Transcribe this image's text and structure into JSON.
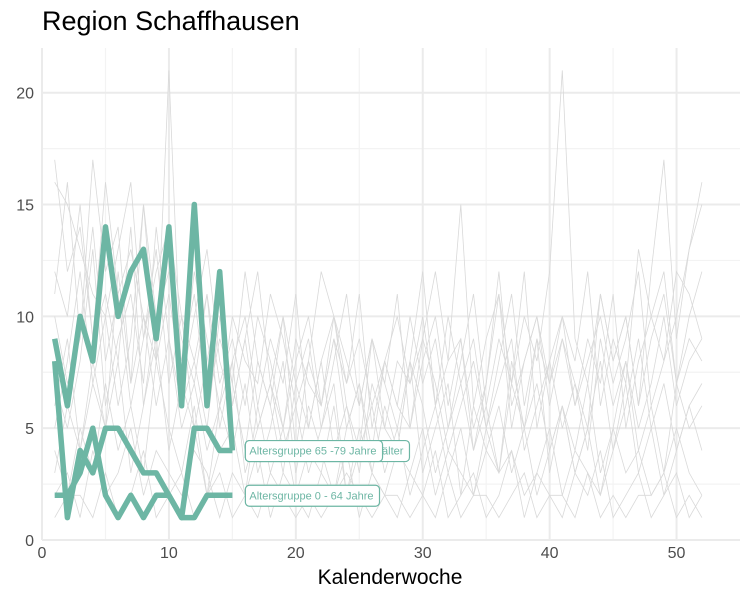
{
  "chart_data": {
    "type": "line",
    "title": "Region Schaffhausen",
    "xlabel": "Kalenderwoche",
    "ylabel": "",
    "xlim": [
      0,
      55
    ],
    "ylim": [
      0,
      22
    ],
    "x_ticks": [
      0,
      10,
      20,
      30,
      40,
      50
    ],
    "y_ticks": [
      0,
      5,
      10,
      15,
      20
    ],
    "grid": true,
    "highlight_color": "#6db6a4",
    "background_color": "#d9d9d9",
    "highlight_series": [
      {
        "name": "Altersgruppe 80 Jahre und älter",
        "label_text": "Altersgruppe 80 Jahre und älter",
        "x": [
          1,
          2,
          3,
          4,
          5,
          6,
          7,
          8,
          9,
          10,
          11,
          12,
          13,
          14,
          15
        ],
        "values": [
          9,
          6,
          10,
          8,
          14,
          10,
          12,
          13,
          9,
          14,
          6,
          15,
          6,
          12,
          4
        ]
      },
      {
        "name": "Altersgruppe 65 -79 Jahre",
        "label_text": "Altersgruppe 65 -79 Jahre",
        "x": [
          1,
          2,
          3,
          4,
          5,
          6,
          7,
          8,
          9,
          10,
          11,
          12,
          13,
          14,
          15
        ],
        "values": [
          8,
          1,
          4,
          3,
          5,
          5,
          4,
          3,
          3,
          2,
          1,
          5,
          5,
          4,
          4
        ]
      },
      {
        "name": "Altersgruppe 0 - 64 Jahre",
        "label_text": "Altersgruppe 0 - 64 Jahre",
        "x": [
          1,
          2,
          3,
          4,
          5,
          6,
          7,
          8,
          9,
          10,
          11,
          12,
          13,
          14,
          15
        ],
        "values": [
          2,
          2,
          3,
          5,
          2,
          1,
          2,
          1,
          2,
          2,
          1,
          1,
          2,
          2,
          2
        ]
      }
    ],
    "background_series": [
      {
        "x": [
          1,
          2,
          3,
          4,
          5,
          6,
          7,
          8,
          9,
          10,
          11,
          12,
          13,
          14,
          15,
          16,
          17,
          18,
          19,
          20,
          21,
          22,
          23,
          24,
          25,
          26,
          27,
          28,
          29,
          30,
          31,
          32,
          33,
          34,
          35,
          36,
          37,
          38,
          39,
          40,
          41,
          42,
          43,
          44,
          45,
          46,
          47,
          48,
          49,
          50,
          51,
          52
        ],
        "values": [
          17,
          12,
          14,
          9,
          16,
          11,
          13,
          10,
          8,
          21,
          7,
          12,
          9,
          6,
          10,
          8,
          7,
          11,
          9,
          6,
          8,
          12,
          10,
          7,
          9,
          6,
          8,
          10,
          7,
          9,
          12,
          8,
          15,
          6,
          9,
          11,
          7,
          10,
          8,
          12,
          21,
          9,
          7,
          11,
          8,
          10,
          6,
          12,
          17,
          9,
          13,
          16
        ]
      },
      {
        "x": [
          1,
          2,
          3,
          4,
          5,
          6,
          7,
          8,
          9,
          10,
          11,
          12,
          13,
          14,
          15,
          16,
          17,
          18,
          19,
          20,
          21,
          22,
          23,
          24,
          25,
          26,
          27,
          28,
          29,
          30,
          31,
          32,
          33,
          34,
          35,
          36,
          37,
          38,
          39,
          40,
          41,
          42,
          43,
          44,
          45,
          46,
          47,
          48,
          49,
          50,
          51,
          52
        ],
        "values": [
          11,
          16,
          9,
          17,
          12,
          14,
          7,
          15,
          10,
          13,
          8,
          11,
          6,
          9,
          7,
          12,
          8,
          6,
          10,
          7,
          9,
          5,
          8,
          11,
          6,
          9,
          7,
          5,
          8,
          12,
          6,
          10,
          7,
          9,
          5,
          8,
          11,
          6,
          9,
          7,
          10,
          8,
          12,
          6,
          9,
          7,
          13,
          10,
          8,
          12,
          11,
          9
        ]
      },
      {
        "x": [
          1,
          2,
          3,
          4,
          5,
          6,
          7,
          8,
          9,
          10,
          11,
          12,
          13,
          14,
          15,
          16,
          17,
          18,
          19,
          20,
          21,
          22,
          23,
          24,
          25,
          26,
          27,
          28,
          29,
          30,
          31,
          32,
          33,
          34,
          35,
          36,
          37,
          38,
          39,
          40,
          41,
          42,
          43,
          44,
          45,
          46,
          47,
          48,
          49,
          50,
          51,
          52
        ],
        "values": [
          16,
          15,
          13,
          11,
          10,
          13,
          16,
          9,
          12,
          14,
          10,
          8,
          11,
          7,
          9,
          6,
          10,
          8,
          5,
          9,
          7,
          6,
          10,
          8,
          6,
          9,
          5,
          8,
          7,
          10,
          6,
          8,
          9,
          5,
          7,
          12,
          6,
          8,
          10,
          7,
          9,
          6,
          8,
          10,
          7,
          9,
          12,
          6,
          8,
          10,
          13,
          15
        ]
      },
      {
        "x": [
          1,
          2,
          3,
          4,
          5,
          6,
          7,
          8,
          9,
          10,
          11,
          12,
          13,
          14,
          15,
          16,
          17,
          18,
          19,
          20,
          21,
          22,
          23,
          24,
          25,
          26,
          27,
          28,
          29,
          30,
          31,
          32,
          33,
          34,
          35,
          36,
          37,
          38,
          39,
          40,
          41,
          42,
          43,
          44,
          45,
          46,
          47,
          48,
          49,
          50,
          51,
          52
        ],
        "values": [
          5,
          8,
          12,
          7,
          10,
          6,
          9,
          15,
          8,
          11,
          7,
          10,
          13,
          8,
          6,
          9,
          5,
          7,
          10,
          4,
          8,
          6,
          9,
          5,
          7,
          4,
          8,
          6,
          5,
          9,
          7,
          4,
          6,
          8,
          5,
          7,
          9,
          4,
          6,
          8,
          5,
          7,
          4,
          9,
          6,
          8,
          5,
          7,
          10,
          6,
          8,
          9
        ]
      },
      {
        "x": [
          1,
          2,
          3,
          4,
          5,
          6,
          7,
          8,
          9,
          10,
          11,
          12,
          13,
          14,
          15,
          16,
          17,
          18,
          19,
          20,
          21,
          22,
          23,
          24,
          25,
          26,
          27,
          28,
          29,
          30,
          31,
          32,
          33,
          34,
          35,
          36,
          37,
          38,
          39,
          40,
          41,
          42,
          43,
          44,
          45,
          46,
          47,
          48,
          49,
          50,
          51,
          52
        ],
        "values": [
          7,
          5,
          8,
          13,
          6,
          9,
          11,
          7,
          14,
          9,
          6,
          8,
          5,
          10,
          7,
          4,
          8,
          6,
          3,
          7,
          5,
          8,
          4,
          6,
          3,
          7,
          5,
          4,
          8,
          6,
          3,
          5,
          7,
          4,
          6,
          3,
          8,
          5,
          7,
          4,
          6,
          3,
          5,
          8,
          4,
          6,
          9,
          5,
          7,
          4,
          6,
          7
        ]
      },
      {
        "x": [
          1,
          2,
          3,
          4,
          5,
          6,
          7,
          8,
          9,
          10,
          11,
          12,
          13,
          14,
          15,
          16,
          17,
          18,
          19,
          20,
          21,
          22,
          23,
          24,
          25,
          26,
          27,
          28,
          29,
          30,
          31,
          32,
          33,
          34,
          35,
          36,
          37,
          38,
          39,
          40,
          41,
          42,
          43,
          44,
          45,
          46,
          47,
          48,
          49,
          50,
          51,
          52
        ],
        "values": [
          3,
          6,
          4,
          8,
          5,
          12,
          7,
          10,
          6,
          9,
          5,
          7,
          4,
          6,
          8,
          3,
          5,
          7,
          4,
          6,
          3,
          5,
          7,
          2,
          4,
          6,
          3,
          5,
          2,
          4,
          6,
          3,
          5,
          2,
          4,
          6,
          3,
          5,
          2,
          4,
          6,
          3,
          5,
          2,
          4,
          7,
          3,
          5,
          2,
          4,
          6,
          4
        ]
      },
      {
        "x": [
          1,
          2,
          3,
          4,
          5,
          6,
          7,
          8,
          9,
          10,
          11,
          12,
          13,
          14,
          15,
          16,
          17,
          18,
          19,
          20,
          21,
          22,
          23,
          24,
          25,
          26,
          27,
          28,
          29,
          30,
          31,
          32,
          33,
          34,
          35,
          36,
          37,
          38,
          39,
          40,
          41,
          42,
          43,
          44,
          45,
          46,
          47,
          48,
          49,
          50,
          51,
          52
        ],
        "values": [
          4,
          2,
          5,
          3,
          7,
          4,
          6,
          3,
          8,
          5,
          3,
          6,
          2,
          4,
          5,
          2,
          6,
          3,
          5,
          2,
          4,
          3,
          6,
          2,
          5,
          3,
          2,
          4,
          3,
          5,
          2,
          4,
          3,
          2,
          5,
          3,
          4,
          2,
          3,
          5,
          2,
          4,
          3,
          2,
          5,
          3,
          4,
          2,
          3,
          5,
          3,
          2
        ]
      },
      {
        "x": [
          1,
          2,
          3,
          4,
          5,
          6,
          7,
          8,
          9,
          10,
          11,
          12,
          13,
          14,
          15,
          16,
          17,
          18,
          19,
          20,
          21,
          22,
          23,
          24,
          25,
          26,
          27,
          28,
          29,
          30,
          31,
          32,
          33,
          34,
          35,
          36,
          37,
          38,
          39,
          40,
          41,
          42,
          43,
          44,
          45,
          46,
          47,
          48,
          49,
          50,
          51,
          52
        ],
        "values": [
          2,
          3,
          1,
          4,
          2,
          3,
          5,
          2,
          4,
          3,
          2,
          4,
          3,
          1,
          3,
          2,
          4,
          1,
          3,
          2,
          1,
          3,
          2,
          4,
          1,
          3,
          2,
          1,
          3,
          2,
          4,
          1,
          2,
          3,
          1,
          2,
          4,
          1,
          3,
          2,
          1,
          3,
          2,
          4,
          1,
          2,
          3,
          1,
          2,
          3,
          1,
          2
        ]
      },
      {
        "x": [
          1,
          2,
          3,
          4,
          5,
          6,
          7,
          8,
          9,
          10,
          11,
          12,
          13,
          14,
          15,
          16,
          17,
          18,
          19,
          20,
          21,
          22,
          23,
          24,
          25,
          26,
          27,
          28,
          29,
          30,
          31,
          32,
          33,
          34,
          35,
          36,
          37,
          38,
          39,
          40,
          41,
          42,
          43,
          44,
          45,
          46,
          47,
          48,
          49,
          50,
          51,
          52
        ],
        "values": [
          1,
          2,
          2,
          1,
          3,
          1,
          2,
          4,
          1,
          2,
          3,
          1,
          2,
          3,
          1,
          2,
          1,
          3,
          2,
          1,
          2,
          1,
          2,
          3,
          2,
          1,
          2,
          2,
          1,
          2,
          1,
          3,
          1,
          2,
          2,
          1,
          2,
          3,
          1,
          2,
          2,
          1,
          3,
          1,
          2,
          1,
          2,
          2,
          3,
          1,
          2,
          1
        ]
      },
      {
        "x": [
          1,
          2,
          3,
          4,
          5,
          6,
          7,
          8,
          9,
          10,
          11,
          12,
          13,
          14,
          15,
          16,
          17,
          18,
          19,
          20,
          21,
          22,
          23,
          24,
          25,
          26,
          27,
          28,
          29,
          30,
          31,
          32,
          33,
          34,
          35,
          36,
          37,
          38,
          39,
          40,
          41,
          42,
          43,
          44,
          45,
          46,
          47,
          48,
          49,
          50,
          51,
          52
        ],
        "values": [
          10,
          7,
          9,
          14,
          8,
          11,
          6,
          9,
          13,
          7,
          10,
          5,
          8,
          11,
          6,
          9,
          12,
          7,
          5,
          8,
          10,
          6,
          9,
          7,
          11,
          5,
          8,
          6,
          10,
          7,
          9,
          5,
          8,
          11,
          6,
          9,
          7,
          12,
          5,
          8,
          10,
          6,
          9,
          7,
          11,
          5,
          8,
          10,
          12,
          7,
          9,
          8
        ]
      },
      {
        "x": [
          1,
          2,
          3,
          4,
          5,
          6,
          7,
          8,
          9,
          10,
          11,
          12,
          13,
          14,
          15,
          16,
          17,
          18,
          19,
          20,
          21,
          22,
          23,
          24,
          25,
          26,
          27,
          28,
          29,
          30,
          31,
          32,
          33,
          34,
          35,
          36,
          37,
          38,
          39,
          40,
          41,
          42,
          43,
          44,
          45,
          46,
          47,
          48,
          49,
          50,
          51,
          52
        ],
        "values": [
          6,
          9,
          4,
          7,
          5,
          8,
          3,
          6,
          9,
          4,
          7,
          5,
          2,
          6,
          4,
          7,
          3,
          5,
          8,
          3,
          6,
          4,
          2,
          5,
          7,
          3,
          6,
          4,
          8,
          3,
          5,
          7,
          2,
          6,
          4,
          3,
          7,
          5,
          9,
          3,
          6,
          4,
          7,
          3,
          5,
          8,
          4,
          6,
          3,
          7,
          5,
          6
        ]
      },
      {
        "x": [
          1,
          2,
          3,
          4,
          5,
          6,
          7,
          8,
          9,
          10,
          11,
          12,
          13,
          14,
          15,
          16,
          17,
          18,
          19,
          20,
          21,
          22,
          23,
          24,
          25,
          26,
          27,
          28,
          29,
          30,
          31,
          32,
          33,
          34,
          35,
          36,
          37,
          38,
          39,
          40,
          41,
          42,
          43,
          44,
          45,
          46,
          47,
          48,
          49,
          50,
          51,
          52
        ],
        "values": [
          12,
          10,
          15,
          9,
          11,
          8,
          14,
          6,
          10,
          12,
          9,
          7,
          11,
          5,
          8,
          10,
          6,
          9,
          7,
          11,
          5,
          8,
          10,
          6,
          4,
          9,
          7,
          11,
          5,
          8,
          10,
          6,
          9,
          4,
          7,
          11,
          5,
          8,
          10,
          6,
          9,
          7,
          5,
          11,
          8,
          10,
          6,
          9,
          11,
          7,
          10,
          12
        ]
      }
    ]
  }
}
